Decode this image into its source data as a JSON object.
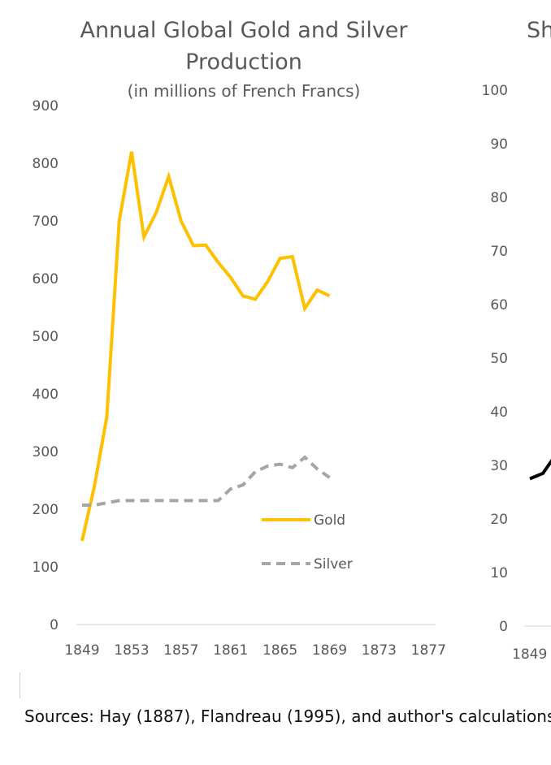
{
  "colors": {
    "gold": "#FFC000",
    "silver": "#A6A6A6",
    "axis": "#D9D9D9",
    "right_series": "#000000"
  },
  "chart_data": [
    {
      "type": "line",
      "title_lines": [
        "Annual Global Gold and Silver",
        "Production"
      ],
      "subtitle": "(in millions of French Francs)",
      "x_tick_labels": [
        "1849",
        "1853",
        "1857",
        "1861",
        "1865",
        "1869",
        "1873",
        "1877"
      ],
      "y_tick_labels": [
        "0",
        "100",
        "200",
        "300",
        "400",
        "500",
        "600",
        "700",
        "800",
        "900"
      ],
      "xlim": [
        1849,
        1878
      ],
      "ylim": [
        0,
        900
      ],
      "grid": false,
      "legend_position": "bottom-right",
      "series": [
        {
          "name": "Gold",
          "style": "solid",
          "color": "#FFC000",
          "points": [
            [
              1849,
              145
            ],
            [
              1850,
              240
            ],
            [
              1851,
              360
            ],
            [
              1852,
              700
            ],
            [
              1853,
              820
            ],
            [
              1854,
              672
            ],
            [
              1855,
              715
            ],
            [
              1856,
              777
            ],
            [
              1857,
              700
            ],
            [
              1858,
              657
            ],
            [
              1859,
              658
            ],
            [
              1860,
              628
            ],
            [
              1861,
              602
            ],
            [
              1862,
              570
            ],
            [
              1863,
              564
            ],
            [
              1864,
              595
            ],
            [
              1865,
              635
            ],
            [
              1866,
              638
            ],
            [
              1867,
              548
            ],
            [
              1868,
              580
            ],
            [
              1869,
              570
            ]
          ]
        },
        {
          "name": "Silver",
          "style": "dashed",
          "color": "#A6A6A6",
          "points": [
            [
              1849,
              207
            ],
            [
              1850,
              207
            ],
            [
              1851,
              211
            ],
            [
              1852,
              215
            ],
            [
              1853,
              215
            ],
            [
              1854,
              215
            ],
            [
              1855,
              215
            ],
            [
              1856,
              215
            ],
            [
              1857,
              215
            ],
            [
              1858,
              215
            ],
            [
              1859,
              215
            ],
            [
              1860,
              215
            ],
            [
              1861,
              235
            ],
            [
              1862,
              242
            ],
            [
              1863,
              265
            ],
            [
              1864,
              275
            ],
            [
              1865,
              278
            ],
            [
              1866,
              272
            ],
            [
              1867,
              290
            ],
            [
              1868,
              270
            ],
            [
              1869,
              255
            ]
          ]
        }
      ]
    },
    {
      "type": "line",
      "title_fragment": "Sh",
      "y_tick_labels": [
        "0",
        "10",
        "20",
        "30",
        "40",
        "50",
        "60",
        "70",
        "80",
        "90",
        "100"
      ],
      "x_tick_labels": [
        "1849"
      ],
      "xlim": [
        1849,
        1878
      ],
      "ylim": [
        0,
        100
      ],
      "series": [
        {
          "color": "#000000",
          "points": [
            [
              1849,
              27.5
            ],
            [
              1850,
              28.5
            ],
            [
              1851,
              32
            ]
          ]
        }
      ]
    }
  ],
  "source_note": "Sources: Hay (1887), Flandreau (1995), and author's calculations"
}
